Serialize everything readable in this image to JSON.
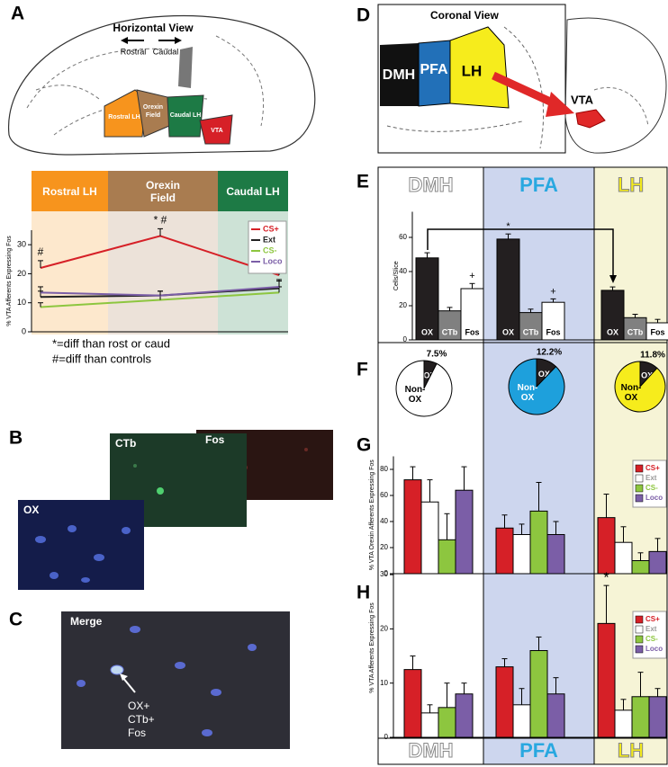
{
  "panel_labels": [
    "A",
    "B",
    "C",
    "D",
    "E",
    "F",
    "G",
    "H"
  ],
  "panel_a": {
    "view_title": "Horizontal View",
    "directions": [
      "Rostral",
      "Caudal"
    ],
    "regions": [
      "Rostral LH",
      "Orexin Field",
      "Caudal LH",
      "VTA"
    ]
  },
  "panel_b": {
    "images": [
      "Fos",
      "CTb",
      "OX"
    ]
  },
  "panel_c": {
    "title": "Merge",
    "annotation": [
      "OX+",
      "CTb+",
      "Fos"
    ]
  },
  "panel_d": {
    "view_title": "Coronal View",
    "regions": [
      "DMH",
      "PFA",
      "LH"
    ],
    "target": "VTA"
  },
  "chart_data": [
    {
      "type": "line",
      "categories": [
        "Rostral LH",
        "Orexin Field",
        "Caudal LH"
      ],
      "category_colors": [
        "#f7941d",
        "#a97c50",
        "#1d7a45"
      ],
      "y_label": "% VTA Afferents Expressing Fos",
      "ylim": [
        0,
        35
      ],
      "yticks": [
        0,
        10,
        20,
        30
      ],
      "series": [
        {
          "name": "CS+",
          "color": "#d62027",
          "values": [
            22,
            33,
            19.5
          ],
          "errors": [
            2.5,
            2.5,
            2.5
          ]
        },
        {
          "name": "Ext",
          "color": "#222222",
          "values": [
            12,
            12.5,
            15
          ],
          "errors": [
            2,
            1.5,
            2.5
          ]
        },
        {
          "name": "CS-",
          "color": "#8dc63f",
          "values": [
            8.5,
            11,
            13.5
          ],
          "errors": [
            1.5,
            1.5,
            2
          ]
        },
        {
          "name": "Loco",
          "color": "#7b5ea7",
          "values": [
            13.5,
            12.5,
            15.5
          ],
          "errors": [
            2,
            1.5,
            2.5
          ]
        }
      ],
      "annotations": [
        "#",
        "* #"
      ],
      "notes": [
        "*=diff than rost or caud",
        "#=diff than controls"
      ],
      "legend": "upper right"
    },
    {
      "type": "bar",
      "categories": [
        "DMH",
        "PFA",
        "LH"
      ],
      "y_label": "Cells/Slice",
      "ylim": [
        0,
        75
      ],
      "yticks": [
        0,
        20,
        40,
        60
      ],
      "series": [
        {
          "name": "OX",
          "color": "#231f20",
          "values": [
            48,
            59,
            29
          ],
          "errors": [
            3,
            3,
            2
          ]
        },
        {
          "name": "CTb",
          "color": "#808080",
          "values": [
            17,
            16,
            13
          ],
          "errors": [
            2,
            2,
            2
          ]
        },
        {
          "name": "Fos",
          "color": "#ffffff",
          "values": [
            30,
            22,
            10
          ],
          "errors": [
            3,
            2,
            2
          ]
        }
      ],
      "annotations": [
        "*",
        "+",
        "+"
      ]
    },
    {
      "type": "pie",
      "categories": [
        "OX",
        "Non-OX"
      ],
      "values": [
        7.5,
        92.5
      ],
      "value_labels": [
        "7.5%",
        null
      ],
      "colors": [
        "#231f20",
        "#ffffff"
      ]
    },
    {
      "type": "pie",
      "categories": [
        "OX",
        "Non-OX"
      ],
      "values": [
        12.2,
        87.8
      ],
      "value_labels": [
        "12.2%",
        null
      ],
      "colors": [
        "#231f20",
        "#1ea0dc"
      ]
    },
    {
      "type": "pie",
      "categories": [
        "OX",
        "Non-OX"
      ],
      "values": [
        11.8,
        88.2
      ],
      "value_labels": [
        "11.8%",
        null
      ],
      "colors": [
        "#231f20",
        "#f6ec1c"
      ]
    },
    {
      "type": "bar",
      "y_label": "% VTA Orexin Afferents Expressing Fos",
      "ylim": [
        0,
        90
      ],
      "yticks": [
        0,
        20,
        40,
        60,
        80
      ],
      "series": [
        {
          "name": "CS+",
          "color": "#d62027",
          "values": [
            72,
            35,
            43
          ],
          "errors": [
            10,
            10,
            18
          ]
        },
        {
          "name": "Ext",
          "color": "#ffffff",
          "values": [
            55,
            30,
            24
          ],
          "errors": [
            17,
            8,
            12
          ]
        },
        {
          "name": "CS-",
          "color": "#8dc63f",
          "values": [
            26,
            48,
            10
          ],
          "errors": [
            20,
            22,
            6
          ]
        },
        {
          "name": "Loco",
          "color": "#7b5ea7",
          "values": [
            64,
            30,
            17
          ],
          "errors": [
            18,
            10,
            10
          ]
        }
      ],
      "legend": "upper right"
    },
    {
      "type": "bar",
      "categories": [
        "DMH",
        "PFA",
        "LH"
      ],
      "y_label": "% VTA Afferents Expressing Fos",
      "ylim": [
        0,
        33
      ],
      "yticks": [
        0,
        10,
        20,
        30
      ],
      "series": [
        {
          "name": "CS+",
          "color": "#d62027",
          "values": [
            12.5,
            13,
            21
          ],
          "errors": [
            2.5,
            1.5,
            7
          ]
        },
        {
          "name": "Ext",
          "color": "#ffffff",
          "values": [
            4.5,
            6,
            5
          ],
          "errors": [
            1.5,
            3,
            2
          ]
        },
        {
          "name": "CS-",
          "color": "#8dc63f",
          "values": [
            5.5,
            16,
            7.5
          ],
          "errors": [
            4.5,
            2.5,
            4.5
          ]
        },
        {
          "name": "Loco",
          "color": "#7b5ea7",
          "values": [
            8,
            8,
            7.5
          ],
          "errors": [
            2,
            3,
            1.5
          ]
        }
      ],
      "annotations": [
        "*"
      ],
      "legend": "upper right"
    }
  ]
}
